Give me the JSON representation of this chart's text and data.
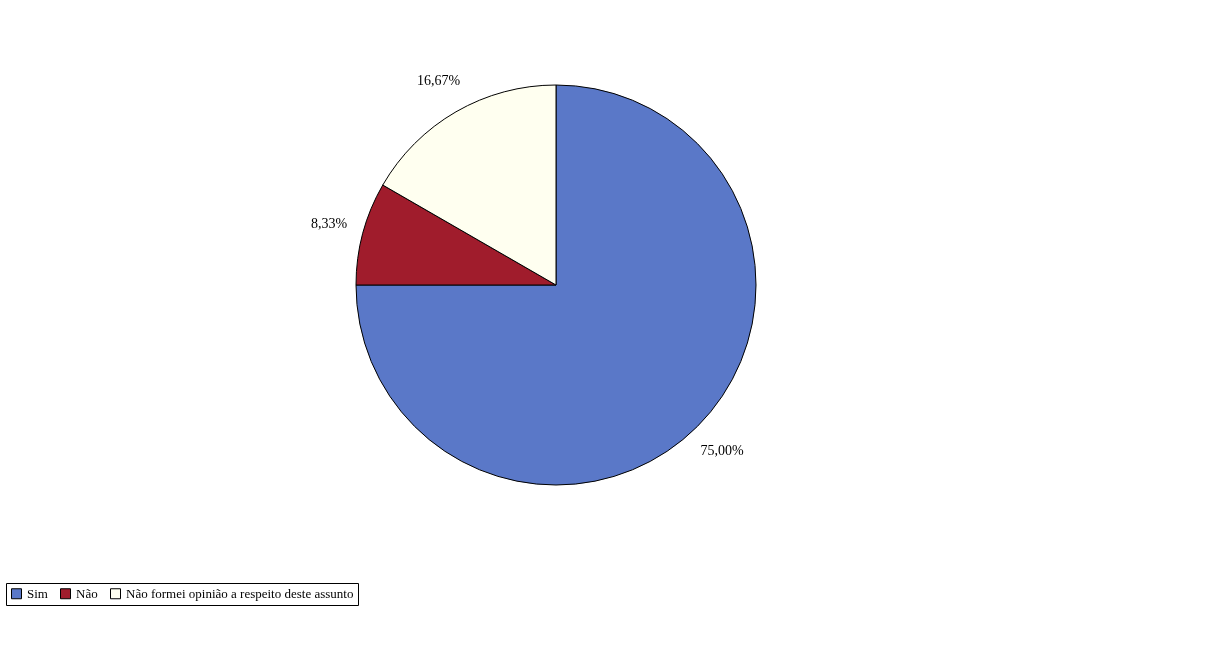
{
  "chart_data": {
    "type": "pie",
    "categories": [
      "Sim",
      "Não",
      "Não formei opinião a respeito deste assunto"
    ],
    "values": [
      75.0,
      8.33,
      16.67
    ],
    "colors": [
      "#5a78c8",
      "#a01c2c",
      "#fffff0"
    ],
    "value_labels": [
      "75,00%",
      "8,33%",
      "16,67%"
    ],
    "legend": "bottom"
  }
}
